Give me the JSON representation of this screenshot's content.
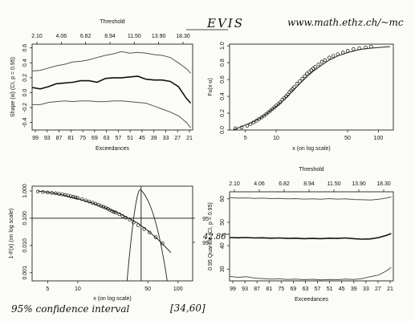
{
  "header": {
    "title": "EVIS",
    "url": "www.math.ethz.ch/~mc"
  },
  "chart_data": [
    {
      "id": "shape",
      "type": "line",
      "title": "Threshold",
      "threshold_ticks": [
        "2.10",
        "4.06",
        "6.82",
        "8.94",
        "11.50",
        "13.90",
        "18.30"
      ],
      "xlabel": "Exceedances",
      "ylabel": "Shape (xi) (CI, p = 0.95)",
      "x_ticks": [
        "99",
        "93",
        "87",
        "81",
        "75",
        "69",
        "63",
        "57",
        "51",
        "45",
        "39",
        "33",
        "27",
        "21"
      ],
      "y_ticks": [
        "-0.4",
        "-0.2",
        "0.0",
        "0.2",
        "0.4",
        "0.6"
      ],
      "xlim": [
        99,
        20
      ],
      "ylim": [
        -0.5,
        0.65
      ],
      "series": [
        {
          "role": "upper",
          "x": [
            99,
            95,
            91,
            87,
            83,
            79,
            75,
            71,
            67,
            63,
            59,
            55,
            51,
            47,
            43,
            39,
            35,
            31,
            27,
            23,
            21
          ],
          "y": [
            0.29,
            0.3,
            0.33,
            0.36,
            0.38,
            0.41,
            0.42,
            0.44,
            0.47,
            0.5,
            0.52,
            0.55,
            0.53,
            0.54,
            0.53,
            0.51,
            0.5,
            0.47,
            0.4,
            0.32,
            0.26
          ]
        },
        {
          "role": "estimate",
          "x": [
            99,
            95,
            91,
            87,
            83,
            79,
            75,
            71,
            67,
            63,
            59,
            55,
            51,
            47,
            43,
            39,
            35,
            31,
            27,
            23,
            21
          ],
          "y": [
            0.07,
            0.05,
            0.08,
            0.12,
            0.13,
            0.14,
            0.16,
            0.16,
            0.14,
            0.19,
            0.2,
            0.2,
            0.21,
            0.22,
            0.18,
            0.17,
            0.17,
            0.15,
            0.08,
            -0.08,
            -0.14
          ]
        },
        {
          "role": "lower",
          "x": [
            99,
            95,
            91,
            87,
            83,
            79,
            75,
            71,
            67,
            63,
            59,
            55,
            51,
            47,
            43,
            39,
            35,
            31,
            27,
            23,
            21
          ],
          "y": [
            -0.16,
            -0.16,
            -0.13,
            -0.12,
            -0.11,
            -0.12,
            -0.11,
            -0.11,
            -0.12,
            -0.12,
            -0.11,
            -0.11,
            -0.12,
            -0.13,
            -0.14,
            -0.18,
            -0.22,
            -0.26,
            -0.31,
            -0.4,
            -0.47
          ]
        }
      ]
    },
    {
      "id": "fu",
      "type": "scatter",
      "xlabel": "x (on log scale)",
      "ylabel": "Fu(x-u)",
      "x_ticks": [
        "5",
        "10",
        "50",
        "100"
      ],
      "x_tick_values": [
        5,
        10,
        50,
        100
      ],
      "y_ticks": [
        "0.0",
        "0.2",
        "0.4",
        "0.6",
        "0.8",
        "1.0"
      ],
      "y_tick_values": [
        0,
        0.2,
        0.4,
        0.6,
        0.8,
        1.0
      ],
      "log_x": true,
      "xlim": [
        3.5,
        140
      ],
      "ylim": [
        0,
        1.02
      ],
      "points": {
        "x": [
          4.0,
          4.6,
          5.2,
          5.6,
          6.0,
          6.4,
          6.8,
          7.2,
          7.6,
          8.0,
          8.4,
          8.8,
          9.2,
          9.6,
          10.0,
          10.5,
          11.0,
          11.5,
          12.0,
          12.5,
          13.0,
          13.5,
          14.0,
          14.5,
          15.0,
          16.0,
          17.0,
          18.0,
          19.0,
          20.0,
          21.0,
          22.0,
          23.0,
          24.0,
          26.0,
          28.0,
          30.0,
          33.0,
          36.0,
          40.0,
          45.0,
          50.0,
          57.0,
          65.0,
          75.0,
          85.0
        ],
        "y": [
          0.02,
          0.03,
          0.05,
          0.07,
          0.09,
          0.11,
          0.13,
          0.15,
          0.17,
          0.19,
          0.21,
          0.23,
          0.25,
          0.27,
          0.29,
          0.31,
          0.33,
          0.36,
          0.38,
          0.4,
          0.42,
          0.45,
          0.47,
          0.49,
          0.51,
          0.55,
          0.58,
          0.61,
          0.64,
          0.67,
          0.69,
          0.71,
          0.73,
          0.75,
          0.78,
          0.81,
          0.83,
          0.86,
          0.88,
          0.9,
          0.92,
          0.94,
          0.96,
          0.97,
          0.98,
          0.99
        ]
      },
      "curve": {
        "x": [
          3.8,
          5,
          6,
          7,
          8,
          10,
          12,
          15,
          18,
          22,
          27,
          33,
          40,
          50,
          65,
          80,
          100,
          130
        ],
        "y": [
          0.0,
          0.06,
          0.1,
          0.14,
          0.19,
          0.28,
          0.36,
          0.48,
          0.58,
          0.68,
          0.76,
          0.83,
          0.88,
          0.92,
          0.955,
          0.97,
          0.98,
          0.99
        ]
      }
    },
    {
      "id": "tail",
      "type": "scatter",
      "xlabel": "x (on log scale)",
      "ylabel": "1-F(x) (on log scale)",
      "x_ticks": [
        "5",
        "10",
        "50",
        "100"
      ],
      "x_tick_values": [
        5,
        10,
        50,
        100
      ],
      "y_ticks": [
        "0.001",
        "0.010",
        "0.100",
        "1.000"
      ],
      "y_tick_values": [
        0.001,
        0.01,
        0.1,
        1.0
      ],
      "right_ticks": [
        "95",
        "99"
      ],
      "log_x": true,
      "log_y": true,
      "xlim": [
        3.5,
        140
      ],
      "ylim": [
        0.0005,
        1.5
      ],
      "reference_level": 0.1,
      "quantile_estimate": 42.86,
      "points": {
        "x": [
          4.0,
          4.5,
          5.0,
          5.5,
          6.0,
          6.5,
          7.0,
          7.5,
          8.0,
          8.5,
          9.0,
          9.5,
          10.0,
          11.0,
          12.0,
          13.0,
          14.0,
          15.0,
          16.0,
          17.0,
          18.0,
          19.0,
          20.0,
          21.0,
          22.0,
          23.0,
          24.0,
          26.0,
          28.0,
          30.0,
          33.0,
          36.0,
          40.0,
          46.0,
          52.0,
          60.0,
          70.0
        ],
        "y": [
          0.95,
          0.92,
          0.88,
          0.85,
          0.82,
          0.78,
          0.75,
          0.71,
          0.68,
          0.64,
          0.61,
          0.58,
          0.55,
          0.5,
          0.45,
          0.41,
          0.37,
          0.34,
          0.31,
          0.28,
          0.26,
          0.24,
          0.22,
          0.2,
          0.18,
          0.17,
          0.16,
          0.14,
          0.12,
          0.105,
          0.09,
          0.07,
          0.055,
          0.04,
          0.03,
          0.02,
          0.012
        ]
      },
      "curve": {
        "x": [
          4,
          5,
          7,
          10,
          14,
          20,
          26,
          33,
          40,
          50,
          65,
          85
        ],
        "y": [
          1.0,
          0.9,
          0.72,
          0.52,
          0.36,
          0.22,
          0.15,
          0.095,
          0.065,
          0.035,
          0.015,
          0.0055
        ]
      }
    },
    {
      "id": "quantile",
      "type": "line",
      "title": "Threshold",
      "threshold_ticks": [
        "2.10",
        "4.06",
        "6.82",
        "8.94",
        "11.50",
        "13.90",
        "18.30"
      ],
      "xlabel": "Exceedances",
      "ylabel": "0.95 Quantile (CI, p = 0.95)",
      "x_ticks": [
        "99",
        "93",
        "87",
        "81",
        "75",
        "69",
        "63",
        "57",
        "51",
        "45",
        "39",
        "33",
        "27",
        "21"
      ],
      "y_ticks": [
        "30",
        "40",
        "50",
        "60"
      ],
      "xlim": [
        99,
        20
      ],
      "ylim": [
        25,
        63
      ],
      "series": [
        {
          "role": "upper",
          "x": [
            99,
            95,
            91,
            87,
            83,
            79,
            75,
            71,
            67,
            63,
            59,
            55,
            51,
            47,
            43,
            39,
            35,
            31,
            27,
            23,
            21
          ],
          "y": [
            60.5,
            60.3,
            60.4,
            60.2,
            60.3,
            60.1,
            60.2,
            60.0,
            60.1,
            59.9,
            60.0,
            59.8,
            60.1,
            59.9,
            60.0,
            59.7,
            59.6,
            59.5,
            59.8,
            60.4,
            60.8
          ]
        },
        {
          "role": "estimate",
          "x": [
            99,
            95,
            91,
            87,
            83,
            79,
            75,
            71,
            67,
            63,
            59,
            55,
            51,
            47,
            43,
            39,
            35,
            31,
            27,
            23,
            21
          ],
          "y": [
            43.5,
            43.4,
            43.5,
            43.3,
            43.4,
            43.2,
            43.3,
            43.1,
            43.2,
            43.0,
            43.1,
            43.0,
            43.2,
            43.1,
            43.3,
            43.0,
            42.8,
            42.9,
            43.5,
            44.5,
            45.2
          ]
        },
        {
          "role": "lower",
          "x": [
            99,
            95,
            91,
            87,
            83,
            79,
            75,
            71,
            67,
            63,
            59,
            55,
            51,
            47,
            43,
            39,
            35,
            31,
            27,
            23,
            21
          ],
          "y": [
            27.0,
            26.5,
            26.8,
            26.2,
            26.0,
            25.8,
            25.9,
            25.6,
            25.8,
            25.5,
            25.7,
            25.4,
            25.6,
            25.5,
            25.8,
            25.6,
            26.0,
            26.8,
            27.5,
            29.5,
            30.8
          ]
        }
      ]
    }
  ],
  "annotations": {
    "quantile_value": "42.86",
    "confidence_text": "95% confidence interval",
    "interval_text": "[34,60]"
  },
  "colors": {
    "estimate": "#111111",
    "band": "#555555",
    "ink": "#111111"
  }
}
